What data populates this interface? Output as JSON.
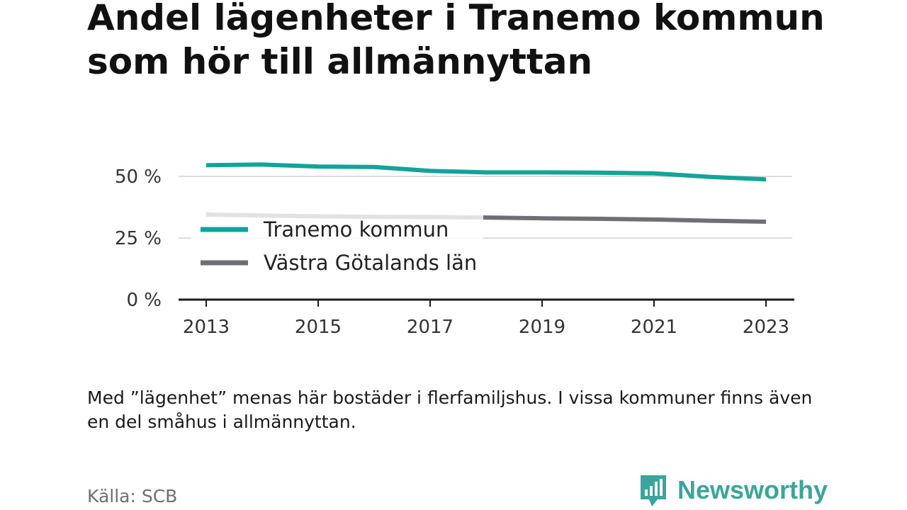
{
  "title": "Andel lägenheter i Tranemo kommun som hör till allmännyttan",
  "note": "Med ”lägenhet” menas här bostäder i flerfamiljshus. I vissa kommuner finns även en del småhus i allmännyttan.",
  "source": "Källa: SCB",
  "brand": "Newsworthy",
  "chart_data": {
    "type": "line",
    "x": [
      2013,
      2014,
      2015,
      2016,
      2017,
      2018,
      2019,
      2020,
      2021,
      2022,
      2023
    ],
    "x_ticks": [
      "2013",
      "2015",
      "2017",
      "2019",
      "2021",
      "2023"
    ],
    "y_ticks": [
      "0 %",
      "25 %",
      "50 %"
    ],
    "ylim": [
      0,
      60
    ],
    "grid": true,
    "legend_position": "left, inside plot",
    "series": [
      {
        "name": "Tranemo kommun",
        "color": "#13a39a",
        "values": [
          54.5,
          54.8,
          54.0,
          53.8,
          52.2,
          51.6,
          51.6,
          51.5,
          51.2,
          49.8,
          48.8
        ]
      },
      {
        "name": "Västra Götalands län",
        "color": "#6e6e76",
        "values": [
          34.5,
          34.1,
          33.8,
          33.6,
          33.5,
          33.3,
          33.0,
          32.8,
          32.5,
          32.0,
          31.6
        ]
      }
    ]
  }
}
